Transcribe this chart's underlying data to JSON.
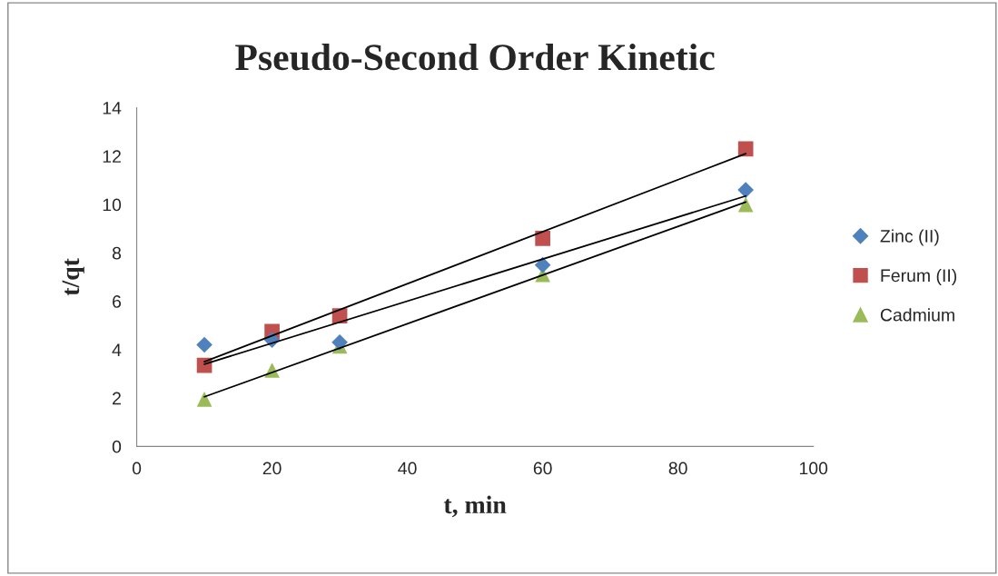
{
  "chart_data": {
    "type": "scatter",
    "title": "Pseudo-Second Order Kinetic",
    "xlabel": "t, min",
    "ylabel": "t/qt",
    "xlim": [
      0,
      100
    ],
    "xticks": [
      0,
      20,
      40,
      60,
      80,
      100
    ],
    "ylim": [
      0,
      14
    ],
    "yticks": [
      0,
      2,
      4,
      6,
      8,
      10,
      12,
      14
    ],
    "grid": false,
    "legend": "right",
    "series": [
      {
        "name": "Zinc (II)",
        "color": "#4f81bd",
        "marker": "diamond",
        "x": [
          10,
          20,
          30,
          60,
          90
        ],
        "values": [
          4.2,
          4.4,
          4.3,
          7.5,
          10.6
        ]
      },
      {
        "name": "Ferum (II)",
        "color": "#c0504d",
        "marker": "square",
        "x": [
          10,
          20,
          30,
          60,
          90
        ],
        "values": [
          3.35,
          4.75,
          5.4,
          8.6,
          12.3
        ]
      },
      {
        "name": "Cadmium",
        "color": "#9bbb59",
        "marker": "triangle",
        "x": [
          10,
          20,
          30,
          60,
          90
        ],
        "values": [
          1.95,
          3.15,
          4.15,
          7.1,
          10.0
        ]
      },
      {
        "type": "line",
        "color": "#000000",
        "marker": "none",
        "x": [
          10,
          90
        ],
        "values": [
          3.5,
          12.1
        ]
      },
      {
        "type": "line",
        "color": "#000000",
        "marker": "none",
        "x": [
          10,
          90
        ],
        "values": [
          3.4,
          10.35
        ]
      },
      {
        "type": "line",
        "color": "#000000",
        "marker": "none",
        "x": [
          10,
          90
        ],
        "values": [
          2.05,
          10.1
        ]
      }
    ]
  }
}
